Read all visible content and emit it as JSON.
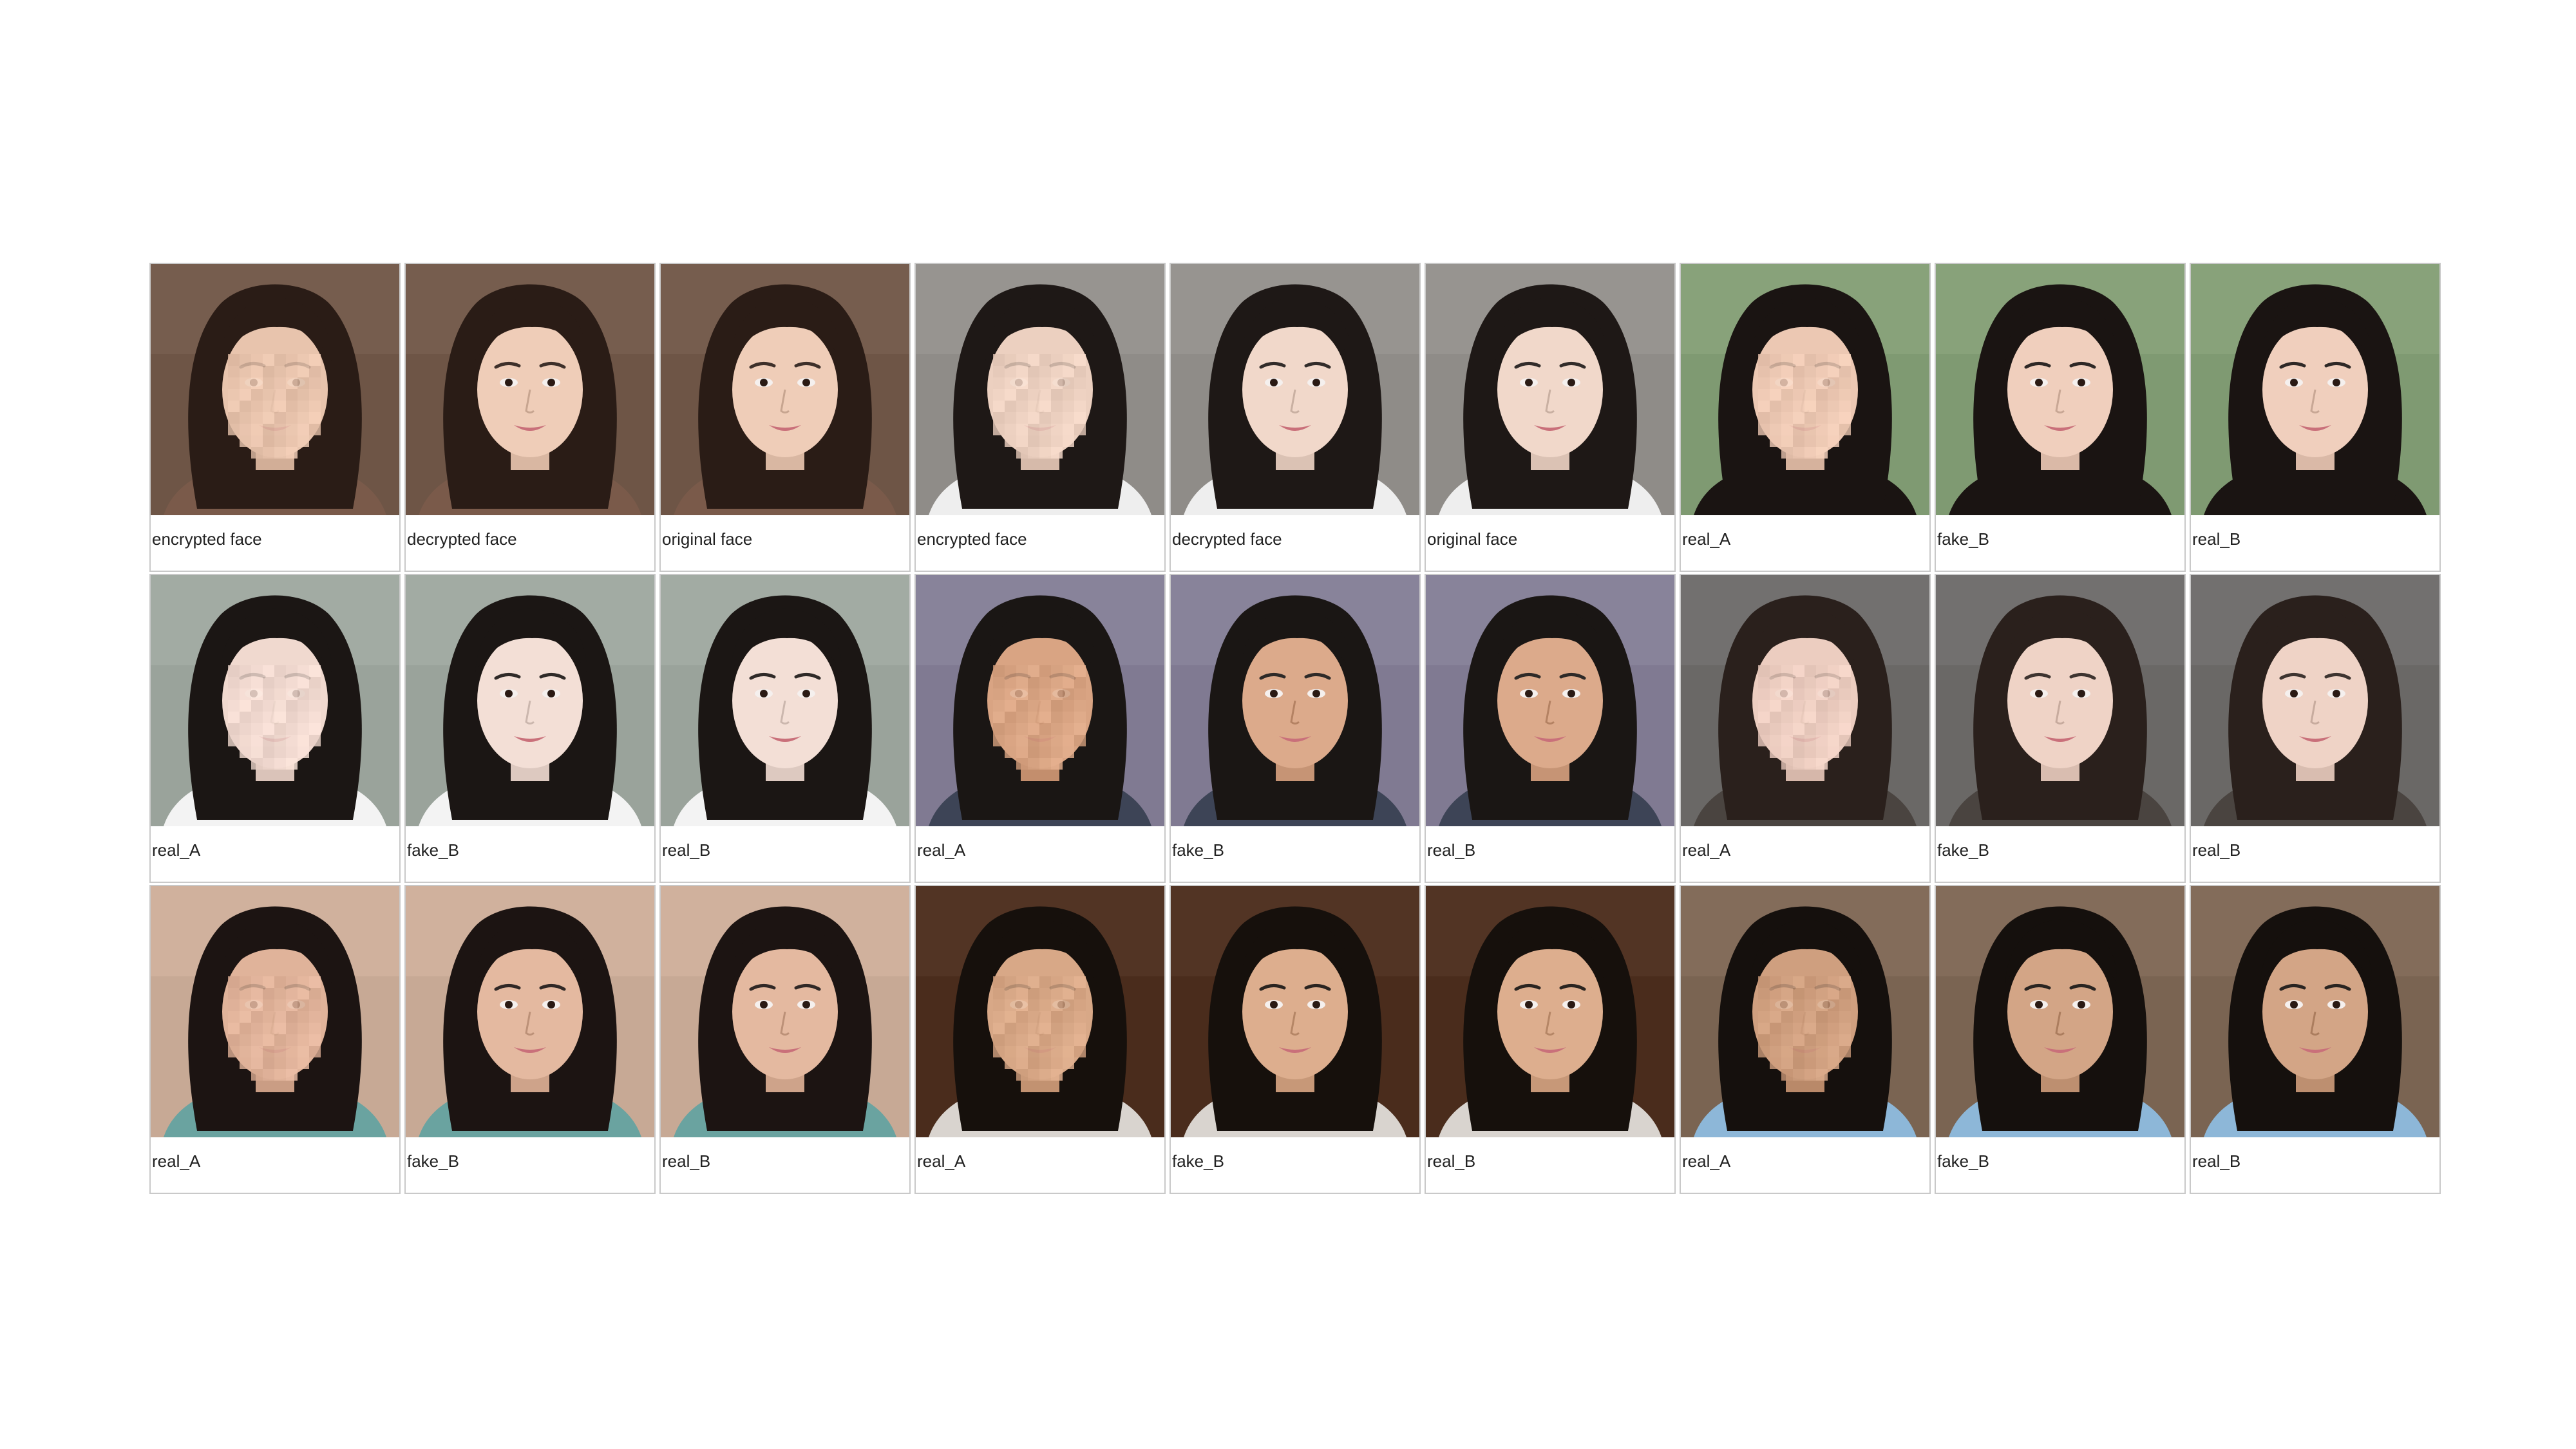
{
  "panels": [
    {
      "label": "encrypted face",
      "bg": "#6e5546",
      "skin": "#e8c4ad",
      "hair": "#2a1c16",
      "shirt": "#7a5a4a",
      "pixelated": true
    },
    {
      "label": "decrypted face",
      "bg": "#6e5546",
      "skin": "#efcdb8",
      "hair": "#2a1c16",
      "shirt": "#7a5a4a",
      "pixelated": false
    },
    {
      "label": "original face",
      "bg": "#6e5546",
      "skin": "#efcdb8",
      "hair": "#2a1c16",
      "shirt": "#7a5a4a",
      "pixelated": false
    },
    {
      "label": "encrypted face",
      "bg": "#8f8c88",
      "skin": "#ecd0c0",
      "hair": "#1e1816",
      "shirt": "#eeeeee",
      "pixelated": true
    },
    {
      "label": "decrypted face",
      "bg": "#8f8c88",
      "skin": "#f1d8ca",
      "hair": "#1e1816",
      "shirt": "#eeeeee",
      "pixelated": false
    },
    {
      "label": "original face",
      "bg": "#8f8c88",
      "skin": "#f1d8ca",
      "hair": "#1e1816",
      "shirt": "#eeeeee",
      "pixelated": false
    },
    {
      "label": "real_A",
      "bg": "#7f9a72",
      "skin": "#ecc8b3",
      "hair": "#1a1412",
      "shirt": "#1a1412",
      "pixelated": true
    },
    {
      "label": "fake_B",
      "bg": "#7f9a72",
      "skin": "#f0cfbd",
      "hair": "#1a1412",
      "shirt": "#1a1412",
      "pixelated": false
    },
    {
      "label": "real_B",
      "bg": "#7f9a72",
      "skin": "#f0cfbd",
      "hair": "#1a1412",
      "shirt": "#1a1412",
      "pixelated": false
    },
    {
      "label": "real_A",
      "bg": "#9aa39b",
      "skin": "#f0d9cf",
      "hair": "#1b1614",
      "shirt": "#f3f3f3",
      "pixelated": true
    },
    {
      "label": "fake_B",
      "bg": "#9aa39b",
      "skin": "#f3dfd6",
      "hair": "#1b1614",
      "shirt": "#f3f3f3",
      "pixelated": false
    },
    {
      "label": "real_B",
      "bg": "#9aa39b",
      "skin": "#f3dfd6",
      "hair": "#1b1614",
      "shirt": "#f3f3f3",
      "pixelated": false
    },
    {
      "label": "real_A",
      "bg": "#807a92",
      "skin": "#d9a483",
      "hair": "#1a1614",
      "shirt": "#3d4456",
      "pixelated": true
    },
    {
      "label": "fake_B",
      "bg": "#807a92",
      "skin": "#dcaa8b",
      "hair": "#1a1614",
      "shirt": "#3d4456",
      "pixelated": false
    },
    {
      "label": "real_B",
      "bg": "#807a92",
      "skin": "#dcaa8b",
      "hair": "#1a1614",
      "shirt": "#3d4456",
      "pixelated": false
    },
    {
      "label": "real_A",
      "bg": "#6a6866",
      "skin": "#eccdc0",
      "hair": "#2a201c",
      "shirt": "#4a4440",
      "pixelated": true
    },
    {
      "label": "fake_B",
      "bg": "#6a6866",
      "skin": "#efd3c6",
      "hair": "#2a201c",
      "shirt": "#4a4440",
      "pixelated": false
    },
    {
      "label": "real_B",
      "bg": "#6a6866",
      "skin": "#efd3c6",
      "hair": "#2a201c",
      "shirt": "#4a4440",
      "pixelated": false
    },
    {
      "label": "real_A",
      "bg": "#c7a995",
      "skin": "#e0b39a",
      "hair": "#1c1412",
      "shirt": "#6aa3a0",
      "pixelated": true
    },
    {
      "label": "fake_B",
      "bg": "#c7a995",
      "skin": "#e4b9a0",
      "hair": "#1c1412",
      "shirt": "#6aa3a0",
      "pixelated": false
    },
    {
      "label": "real_B",
      "bg": "#c7a995",
      "skin": "#e4b9a0",
      "hair": "#1c1412",
      "shirt": "#6aa3a0",
      "pixelated": false
    },
    {
      "label": "real_A",
      "bg": "#4a2c1c",
      "skin": "#d8a887",
      "hair": "#16100c",
      "shirt": "#d9d4cf",
      "pixelated": true
    },
    {
      "label": "fake_B",
      "bg": "#4a2c1c",
      "skin": "#ddae8e",
      "hair": "#16100c",
      "shirt": "#d9d4cf",
      "pixelated": false
    },
    {
      "label": "real_B",
      "bg": "#4a2c1c",
      "skin": "#ddae8e",
      "hair": "#16100c",
      "shirt": "#d9d4cf",
      "pixelated": false
    },
    {
      "label": "real_A",
      "bg": "#7a6452",
      "skin": "#cf9f7f",
      "hair": "#15100d",
      "shirt": "#8db7d8",
      "pixelated": true
    },
    {
      "label": "fake_B",
      "bg": "#7a6452",
      "skin": "#d3a586",
      "hair": "#15100d",
      "shirt": "#8db7d8",
      "pixelated": false
    },
    {
      "label": "real_B",
      "bg": "#7a6452",
      "skin": "#d3a586",
      "hair": "#15100d",
      "shirt": "#8db7d8",
      "pixelated": false
    }
  ]
}
